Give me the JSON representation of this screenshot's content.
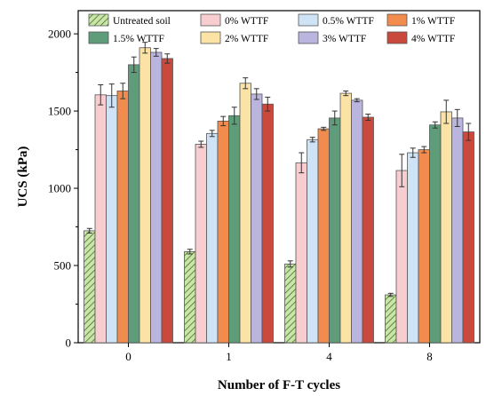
{
  "chart_data": {
    "type": "bar",
    "title": "",
    "xlabel": "Number of F-T cycles",
    "ylabel": "UCS (kPa)",
    "ylim": [
      0,
      2150
    ],
    "yticks": [
      0,
      500,
      1000,
      1500,
      2000
    ],
    "categories": [
      "0",
      "1",
      "4",
      "8"
    ],
    "legend_position": "top",
    "series": [
      {
        "name": "Untreated soil",
        "color": "#c8e6a8",
        "pattern": "hatch",
        "values": [
          725,
          590,
          510,
          310
        ],
        "errors": [
          15,
          15,
          20,
          10
        ]
      },
      {
        "name": "0% WTTF",
        "color": "#f7cdd0",
        "values": [
          1605,
          1285,
          1165,
          1115
        ],
        "errors": [
          65,
          20,
          65,
          105
        ]
      },
      {
        "name": "0.5% WTTF",
        "color": "#cfe3f6",
        "values": [
          1600,
          1355,
          1315,
          1230
        ],
        "errors": [
          75,
          20,
          15,
          30
        ]
      },
      {
        "name": "1% WTTF",
        "color": "#f28c4e",
        "values": [
          1630,
          1435,
          1385,
          1250
        ],
        "errors": [
          50,
          30,
          10,
          20
        ]
      },
      {
        "name": "1.5% WTTF",
        "color": "#5f9d7a",
        "values": [
          1800,
          1470,
          1455,
          1410
        ],
        "errors": [
          50,
          55,
          45,
          20
        ]
      },
      {
        "name": "2% WTTF",
        "color": "#fbe3a6",
        "values": [
          1910,
          1680,
          1615,
          1495
        ],
        "errors": [
          35,
          35,
          15,
          75
        ]
      },
      {
        "name": "3% WTTF",
        "color": "#b9b5de",
        "values": [
          1880,
          1610,
          1570,
          1455
        ],
        "errors": [
          25,
          35,
          10,
          55
        ]
      },
      {
        "name": "4% WTTF",
        "color": "#c94a3c",
        "values": [
          1840,
          1545,
          1460,
          1365
        ],
        "errors": [
          30,
          45,
          20,
          55
        ]
      }
    ]
  }
}
